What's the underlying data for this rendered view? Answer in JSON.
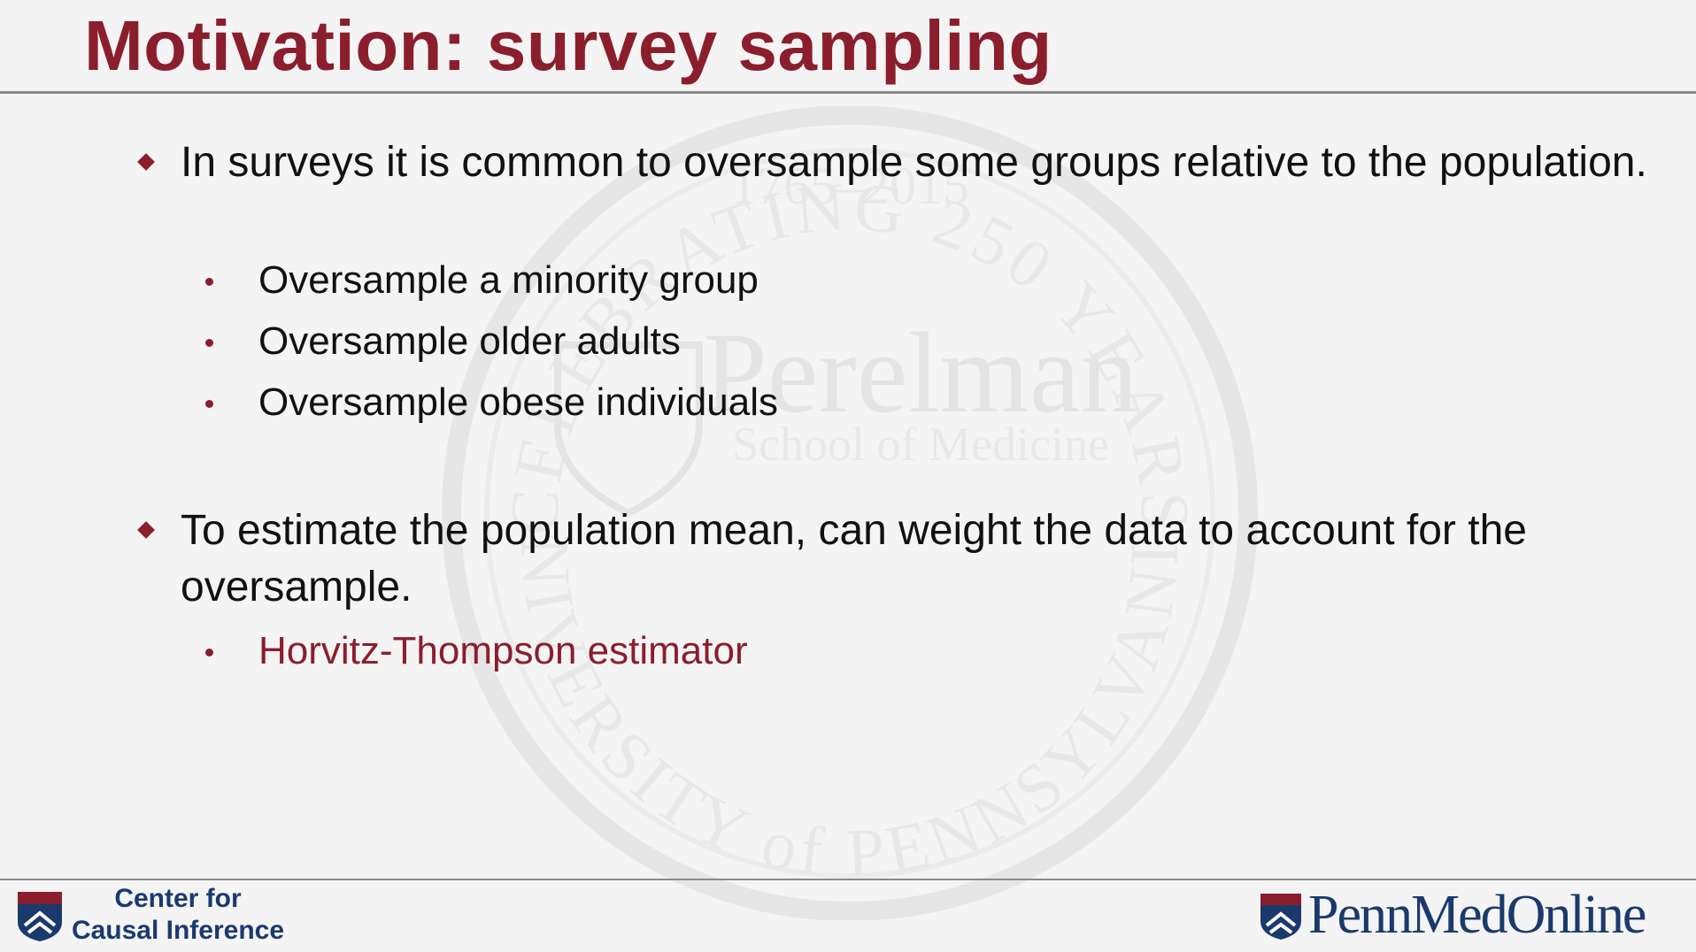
{
  "slide": {
    "title": "Motivation: survey sampling",
    "bullets": [
      {
        "text": "In surveys it is common to oversample some groups relative to the population.",
        "subs": [
          "Oversample a minority group",
          "Oversample older adults",
          "Oversample obese individuals"
        ]
      },
      {
        "text": "To estimate the population mean, can weight the data to account for the oversample.",
        "subs": [
          "Horvitz-Thompson estimator"
        ]
      }
    ]
  },
  "watermark": {
    "top_arc": "CELEBRATING 250 YEARS",
    "years": "1765–2015",
    "name": "Perelman",
    "school": "School of Medicine",
    "bottom_arc": "UNIVERSITY of PENNSYLVANIA"
  },
  "footer": {
    "left_logo_line1": "Center for",
    "left_logo_line2": "Causal Inference",
    "right_logo": "PennMedOnline"
  },
  "colors": {
    "accent": "#8b1e2d",
    "navy": "#1a3a6e",
    "rule": "#8a8a8a",
    "background": "#f4f4f4"
  }
}
